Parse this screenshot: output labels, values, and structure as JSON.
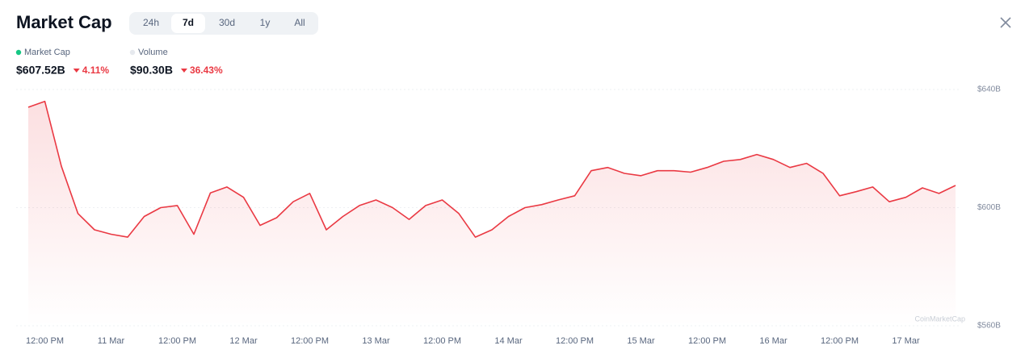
{
  "header": {
    "title": "Market Cap",
    "tabs": [
      "24h",
      "7d",
      "30d",
      "1y",
      "All"
    ],
    "active_tab": 1
  },
  "stats": [
    {
      "name": "Market Cap",
      "color": "#16c784",
      "value": "$607.52B",
      "change": "4.11%"
    },
    {
      "name": "Volume",
      "color": "#e6e9ee",
      "value": "$90.30B",
      "change": "36.43%"
    }
  ],
  "chart_data": {
    "type": "line",
    "categories": [
      null,
      "12:00 PM",
      null,
      null,
      null,
      "11 Mar",
      null,
      null,
      null,
      "12:00 PM",
      null,
      null,
      null,
      "12 Mar",
      null,
      null,
      null,
      "12:00 PM",
      null,
      null,
      null,
      "13 Mar",
      null,
      null,
      null,
      "12:00 PM",
      null,
      null,
      null,
      "14 Mar",
      null,
      null,
      null,
      "12:00 PM",
      null,
      null,
      null,
      "15 Mar",
      null,
      null,
      null,
      "12:00 PM",
      null,
      null,
      null,
      "16 Mar",
      null,
      null,
      null,
      "12:00 PM",
      null,
      null,
      null,
      "17 Mar",
      null,
      null,
      null
    ],
    "values": [
      634,
      636,
      614,
      598,
      592.5,
      591,
      590,
      597,
      600,
      600.7,
      591,
      605,
      607,
      603.5,
      594,
      596.6,
      602,
      604.8,
      592.5,
      597,
      600.7,
      602.6,
      600,
      596,
      600.7,
      602.6,
      598,
      590,
      592.5,
      597,
      600,
      601,
      602.6,
      604,
      612.5,
      613.6,
      611.6,
      610.8,
      612.5,
      612.5,
      612,
      613.6,
      615.7,
      616.3,
      618,
      616.3,
      613.6,
      615,
      611.6,
      604,
      605.4,
      607,
      602,
      603.5,
      606.7,
      604.8,
      607.5
    ],
    "color": "#ea3943",
    "ylim": [
      560,
      640
    ],
    "yticks": [
      {
        "value": 560,
        "label": "$560B"
      },
      {
        "value": 600,
        "label": "$600B"
      },
      {
        "value": 640,
        "label": "$640B"
      }
    ],
    "grid": true,
    "watermark": "CoinMarketCap"
  }
}
